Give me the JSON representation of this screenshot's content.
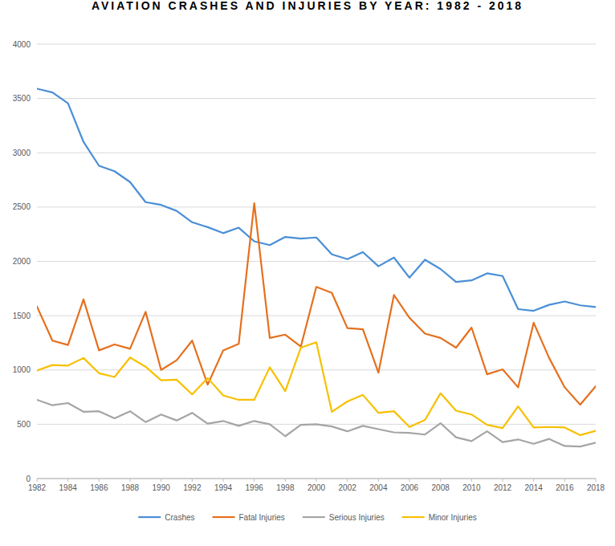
{
  "chart_data": {
    "type": "line",
    "title": "AVIATION CRASHES AND INJURIES BY YEAR: 1982 - 2018",
    "x": [
      1982,
      1983,
      1984,
      1985,
      1986,
      1987,
      1988,
      1989,
      1990,
      1991,
      1992,
      1993,
      1994,
      1995,
      1996,
      1997,
      1998,
      1999,
      2000,
      2001,
      2002,
      2003,
      2004,
      2005,
      2006,
      2007,
      2008,
      2009,
      2010,
      2011,
      2012,
      2013,
      2014,
      2015,
      2016,
      2017,
      2018
    ],
    "series": [
      {
        "name": "Crashes",
        "color": "#4a8fd6",
        "values": [
          3590,
          3555,
          3455,
          3100,
          2880,
          2830,
          2730,
          2545,
          2520,
          2465,
          2360,
          2315,
          2260,
          2310,
          2185,
          2150,
          2225,
          2210,
          2220,
          2065,
          2020,
          2085,
          1955,
          2035,
          1850,
          2015,
          1930,
          1810,
          1825,
          1890,
          1865,
          1560,
          1545,
          1600,
          1630,
          1595,
          1580
        ]
      },
      {
        "name": "Fatal Injuries",
        "color": "#e5701e",
        "values": [
          1585,
          1270,
          1230,
          1650,
          1180,
          1235,
          1195,
          1535,
          1000,
          1090,
          1270,
          865,
          1180,
          1240,
          2535,
          1295,
          1325,
          1215,
          1765,
          1710,
          1385,
          1375,
          975,
          1690,
          1480,
          1335,
          1295,
          1205,
          1390,
          960,
          1005,
          840,
          1435,
          1110,
          840,
          680,
          850
        ]
      },
      {
        "name": "Serious Injuries",
        "color": "#a5a5a5",
        "values": [
          725,
          675,
          695,
          615,
          620,
          555,
          620,
          520,
          590,
          535,
          605,
          505,
          530,
          485,
          530,
          500,
          390,
          495,
          500,
          480,
          435,
          485,
          455,
          425,
          420,
          405,
          510,
          380,
          345,
          435,
          335,
          360,
          320,
          365,
          300,
          295,
          330
        ]
      },
      {
        "name": "Minor Injuries",
        "color": "#f7c002",
        "values": [
          995,
          1045,
          1040,
          1110,
          970,
          935,
          1115,
          1030,
          905,
          910,
          775,
          925,
          765,
          725,
          725,
          1025,
          805,
          1205,
          1255,
          615,
          710,
          770,
          605,
          620,
          475,
          540,
          785,
          625,
          590,
          495,
          465,
          665,
          470,
          475,
          470,
          400,
          440
        ]
      }
    ],
    "xlim": [
      1982,
      2018
    ],
    "xticks": [
      1982,
      1984,
      1986,
      1988,
      1990,
      1992,
      1994,
      1996,
      1998,
      2000,
      2002,
      2004,
      2006,
      2008,
      2010,
      2012,
      2014,
      2016,
      2018
    ],
    "ylim": [
      0,
      4000
    ],
    "yticks": [
      0,
      500,
      1000,
      1500,
      2000,
      2500,
      3000,
      3500,
      4000
    ],
    "grid": true,
    "legend": "bottom"
  }
}
